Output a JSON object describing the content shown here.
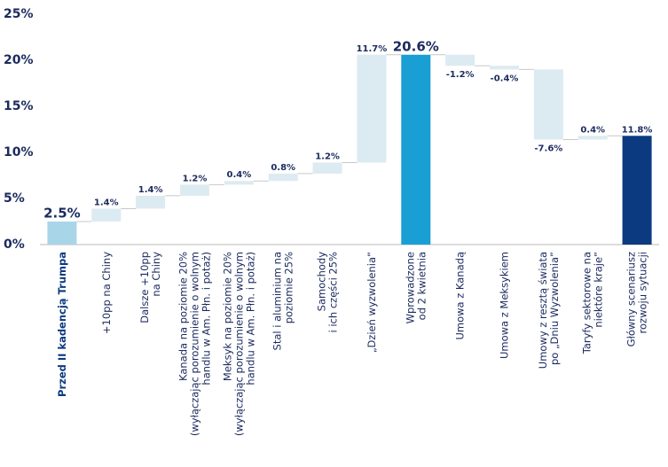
{
  "chart_data": {
    "type": "waterfall",
    "categories": [
      "Przed II kadencją Trumpa",
      "+10pp na Chiny",
      "Dalsze +10pp\nna Chiny",
      "Kanada na poziomie 20%\n(wyłączając porozumienie o wolnym\nhandlu w Am. Płn. i potaż)",
      "Meksyk na poziomie 20%\n(wyłączając porozumienie o wolnym\nhandlu w Am. Płn. i potaż)",
      "Stal i aluminium na\npoziomie 25%",
      "Samochody\ni ich części 25%",
      "„Dzień wyzwolenia”",
      "Wprowadzone\nod 2 kwietnia",
      "Umowa z Kanadą",
      "Umowa z Meksykiem",
      "Umowy z resztą świata\npo „Dniu Wyzwolenia”",
      "Taryfy sektorowe na\nniektóre kraje”",
      "Główny scenariusz\nrozwoju sytuacji"
    ],
    "values": [
      2.5,
      1.4,
      1.4,
      1.2,
      0.4,
      0.8,
      1.2,
      11.7,
      20.6,
      -1.2,
      -0.4,
      -7.6,
      0.4,
      11.8
    ],
    "value_labels": [
      "2.5%",
      "1.4%",
      "1.4%",
      "1.2%",
      "0.4%",
      "0.8%",
      "1.2%",
      "11.7%",
      "20.6%",
      "-1.2%",
      "-0.4%",
      "-7.6%",
      "0.4%",
      "11.8%"
    ],
    "measure": [
      "absolute",
      "relative",
      "relative",
      "relative",
      "relative",
      "relative",
      "relative",
      "relative",
      "absolute",
      "relative",
      "relative",
      "relative",
      "relative",
      "absolute"
    ],
    "colors": [
      "#a9d5e8",
      "#dcebf1",
      "#dcebf1",
      "#dcebf1",
      "#dcebf1",
      "#dcebf1",
      "#dcebf1",
      "#dcebf1",
      "#1a9fd4",
      "#dcebf1",
      "#dcebf1",
      "#dcebf1",
      "#dcebf1",
      "#0b3a80"
    ],
    "ylim": [
      0,
      25
    ],
    "yticks": [
      {
        "value": 0,
        "label": "0%"
      },
      {
        "value": 5,
        "label": "5%"
      },
      {
        "value": 10,
        "label": "10%"
      },
      {
        "value": 15,
        "label": "15%"
      },
      {
        "value": 20,
        "label": "20%"
      },
      {
        "value": 25,
        "label": "25%"
      }
    ]
  }
}
